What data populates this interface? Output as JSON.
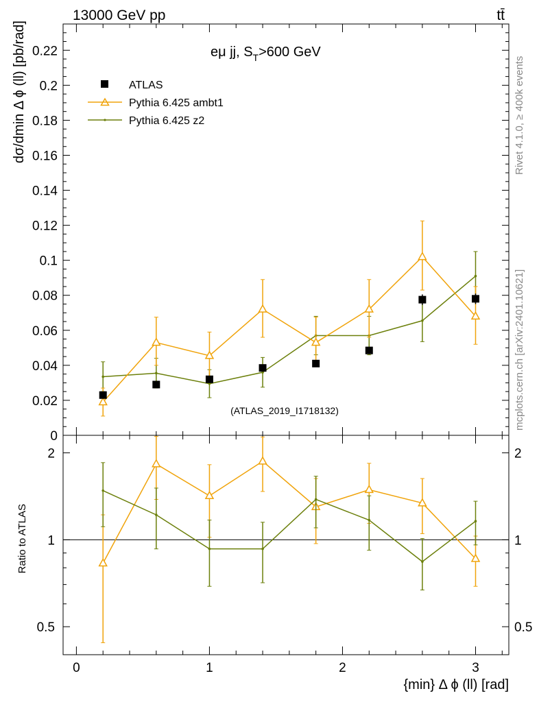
{
  "header": {
    "left": "13000 GeV pp",
    "right": "tt̄"
  },
  "side_labels": {
    "rivet": "Rivet 4.1.0, ≥ 400k events",
    "mcplots": "mcplots.cern.ch [arXiv:2401.10621]"
  },
  "colors": {
    "data": "#000000",
    "ambt1": "#f0a30a",
    "z2": "#6b7f0a",
    "watermark": "#999999",
    "side": "#888888"
  },
  "chart_data": [
    {
      "type": "scatter",
      "panel": "main",
      "title": "eμ jj, S_T>600 GeV",
      "title_main": "eμ jj, S",
      "title_sub": "T",
      "title_tail": ">600 GeV",
      "ylabel": "dσ/dmin Δ ϕ (ll) [pb/rad]",
      "xlabel": "",
      "watermark": "(ATLAS_2019_I1718132)",
      "xlim": [
        -0.1,
        3.25
      ],
      "ylim": [
        0,
        0.235
      ],
      "ytick_values": [
        0.02,
        0.04,
        0.06,
        0.08,
        0.1,
        0.12,
        0.14,
        0.16,
        0.18,
        0.2,
        0.22
      ],
      "ytick_labels": [
        "0.02",
        "0.04",
        "0.06",
        "0.08",
        "0.1",
        "0.12",
        "0.14",
        "0.16",
        "0.18",
        "0.2",
        "0.22"
      ],
      "y_zero_label": "0",
      "legend": [
        "ATLAS",
        "Pythia 6.425 ambt1",
        "Pythia 6.425 z2"
      ],
      "legend_position": "top-left",
      "x": [
        0.2,
        0.6,
        1.0,
        1.4,
        1.8,
        2.2,
        2.6,
        3.0
      ],
      "series": [
        {
          "name": "ATLAS",
          "marker": "square",
          "values": [
            0.023,
            0.029,
            0.032,
            0.0385,
            0.041,
            0.0485,
            0.0775,
            0.078
          ],
          "err": [
            0.002,
            0.002,
            0.002,
            0.002,
            0.002,
            0.002,
            0.003,
            0.003
          ]
        },
        {
          "name": "Pythia 6.425 ambt1",
          "marker": "triangle",
          "values": [
            0.019,
            0.053,
            0.0455,
            0.072,
            0.053,
            0.072,
            0.102,
            0.068
          ],
          "err_low": [
            0.008,
            0.013,
            0.0125,
            0.016,
            0.013,
            0.016,
            0.019,
            0.016
          ],
          "err_high": [
            0.008,
            0.0145,
            0.0135,
            0.017,
            0.0145,
            0.017,
            0.0205,
            0.017
          ]
        },
        {
          "name": "Pythia 6.425 z2",
          "marker": "dot",
          "values": [
            0.0335,
            0.0355,
            0.0295,
            0.036,
            0.057,
            0.057,
            0.0655,
            0.091
          ],
          "err_low": [
            0.0085,
            0.0085,
            0.008,
            0.0085,
            0.011,
            0.011,
            0.012,
            0.014
          ],
          "err_high": [
            0.0085,
            0.0085,
            0.008,
            0.0085,
            0.011,
            0.011,
            0.012,
            0.014
          ]
        }
      ]
    },
    {
      "type": "line",
      "panel": "ratio",
      "ylabel": "Ratio to ATLAS",
      "xlabel": "{min} Δ ϕ (ll) [rad]",
      "xlim": [
        -0.1,
        3.25
      ],
      "ylim": [
        0.4,
        2.3
      ],
      "yscale": "log",
      "ytick_values": [
        0.5,
        1,
        2
      ],
      "ytick_labels": [
        "0.5",
        "1",
        "2"
      ],
      "xtick_values": [
        0,
        1,
        2,
        3
      ],
      "xtick_labels": [
        "0",
        "1",
        "2",
        "3"
      ],
      "x": [
        0.2,
        0.6,
        1.0,
        1.4,
        1.8,
        2.2,
        2.6,
        3.0
      ],
      "series": [
        {
          "name": "Pythia 6.425 ambt1",
          "values": [
            0.83,
            1.83,
            1.42,
            1.87,
            1.3,
            1.49,
            1.34,
            0.86
          ],
          "err_low": [
            0.39,
            0.45,
            0.4,
            0.4,
            0.33,
            0.35,
            0.29,
            0.17
          ],
          "err_high": [
            0.39,
            0.45,
            0.4,
            0.4,
            0.33,
            0.35,
            0.29,
            0.17
          ]
        },
        {
          "name": "Pythia 6.425 z2",
          "values": [
            1.48,
            1.22,
            0.93,
            0.93,
            1.38,
            1.17,
            0.84,
            1.16
          ],
          "err_low": [
            0.37,
            0.29,
            0.24,
            0.22,
            0.28,
            0.25,
            0.17,
            0.2
          ],
          "err_high": [
            0.37,
            0.29,
            0.24,
            0.22,
            0.28,
            0.25,
            0.17,
            0.2
          ]
        }
      ]
    }
  ]
}
